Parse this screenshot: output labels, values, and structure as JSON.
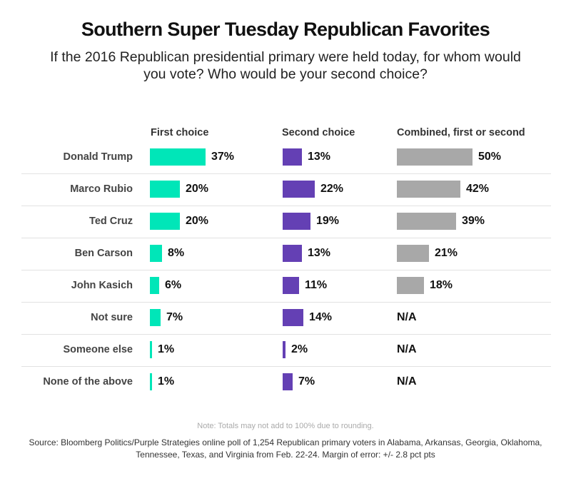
{
  "chart_data": {
    "type": "table",
    "title": "Southern Super Tuesday Republican Favorites",
    "subtitle": "If the 2016 Republican presidential primary were held today, for whom would you vote? Who would be your second choice?",
    "columns": [
      "First choice",
      "Second choice",
      "Combined, first or second"
    ],
    "categories": [
      "Donald Trump",
      "Marco Rubio",
      "Ted Cruz",
      "Ben Carson",
      "John Kasich",
      "Not sure",
      "Someone else",
      "None of the above"
    ],
    "series": [
      {
        "name": "First choice",
        "values": [
          37,
          20,
          20,
          8,
          6,
          7,
          1,
          1
        ],
        "color": "#00e6b8"
      },
      {
        "name": "Second choice",
        "values": [
          13,
          22,
          19,
          13,
          11,
          14,
          2,
          7
        ],
        "color": "#6440b4"
      },
      {
        "name": "Combined, first or second",
        "values": [
          50,
          42,
          39,
          21,
          18,
          null,
          null,
          null
        ],
        "color": "#a8a8a8"
      }
    ],
    "na_label": "N/A",
    "unit": "%",
    "note": "Note: Totals may not add to 100% due to rounding.",
    "source": "Source: Bloomberg Politics/Purple Strategies online poll of 1,254 Republican primary voters in Alabama, Arkansas, Georgia, Oklahoma, Tennessee, Texas, and Virginia from Feb. 22-24. Margin of error: +/- 2.8 pct pts"
  }
}
